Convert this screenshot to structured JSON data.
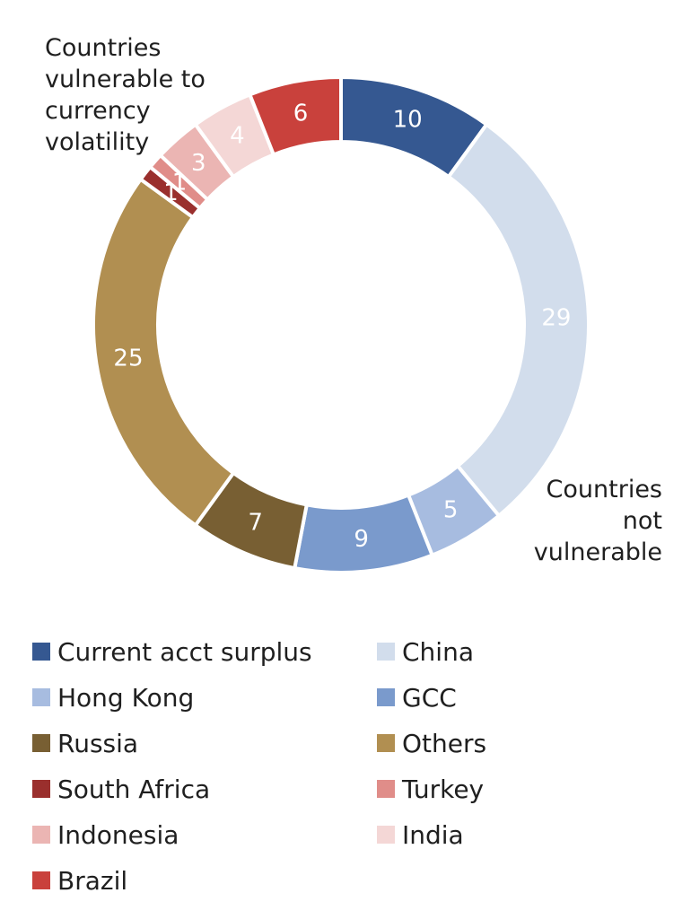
{
  "chart_data": {
    "type": "pie",
    "donut": true,
    "categories": [
      "Current acct surplus",
      "China",
      "Hong Kong",
      "GCC",
      "Russia",
      "Others",
      "South Africa",
      "Turkey",
      "Indonesia",
      "India",
      "Brazil"
    ],
    "values": [
      10,
      29,
      5,
      9,
      7,
      25,
      1,
      1,
      3,
      4,
      6
    ],
    "colors": [
      "#355891",
      "#d2ddec",
      "#a7bce0",
      "#7a9acc",
      "#785f33",
      "#b18f51",
      "#9a2f2d",
      "#e08d89",
      "#ebb5b3",
      "#f4d7d6",
      "#c9413c"
    ],
    "label_colors": [
      "#ffffff",
      "#ffffff",
      "#ffffff",
      "#ffffff",
      "#ffffff",
      "#ffffff",
      "#ffffff",
      "#ffffff",
      "#ffffff",
      "#ffffff",
      "#ffffff"
    ],
    "start_angle_deg": 0,
    "direction": "clockwise",
    "legend_placement": "bottom",
    "legend_columns": 2,
    "annotations": [
      "Countries vulnerable to currency volatility",
      "Countries not vulnerable"
    ]
  },
  "annotation_vulnerable": [
    "Countries",
    "vulnerable to",
    "currency",
    "volatility"
  ],
  "annotation_not_vulnerable": [
    "Countries",
    "not",
    "vulnerable"
  ]
}
